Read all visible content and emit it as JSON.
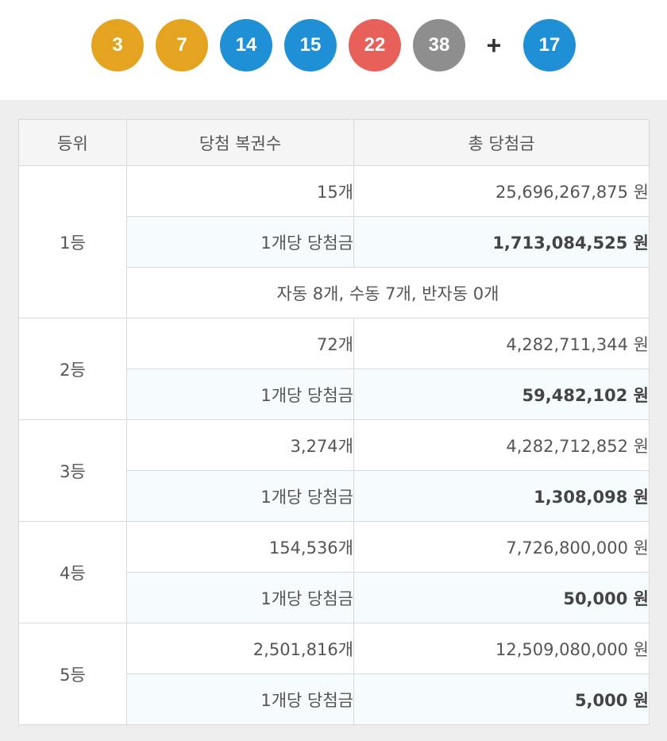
{
  "balls": [
    {
      "number": "3",
      "color": "#e5a41f"
    },
    {
      "number": "7",
      "color": "#e5a41f"
    },
    {
      "number": "14",
      "color": "#1f8fd6"
    },
    {
      "number": "15",
      "color": "#1f8fd6"
    },
    {
      "number": "22",
      "color": "#e8605a"
    },
    {
      "number": "38",
      "color": "#8e8e8e"
    }
  ],
  "plus_sign": "+",
  "bonus_ball": {
    "number": "17",
    "color": "#1f8fd6"
  },
  "table": {
    "headers": [
      "등위",
      "당첨 복권수",
      "총 당첨금"
    ],
    "per_label": "1개당 당첨금",
    "ranks": [
      {
        "rank": "1등",
        "count": "15개",
        "total": "25,696,267,875 원",
        "per": "1,713,084,525 원",
        "note": "자동 8개, 수동 7개, 반자동 0개"
      },
      {
        "rank": "2등",
        "count": "72개",
        "total": "4,282,711,344 원",
        "per": "59,482,102 원"
      },
      {
        "rank": "3등",
        "count": "3,274개",
        "total": "4,282,712,852 원",
        "per": "1,308,098 원"
      },
      {
        "rank": "4등",
        "count": "154,536개",
        "total": "7,726,800,000 원",
        "per": "50,000 원"
      },
      {
        "rank": "5등",
        "count": "2,501,816개",
        "total": "12,509,080,000 원",
        "per": "5,000 원"
      }
    ]
  }
}
